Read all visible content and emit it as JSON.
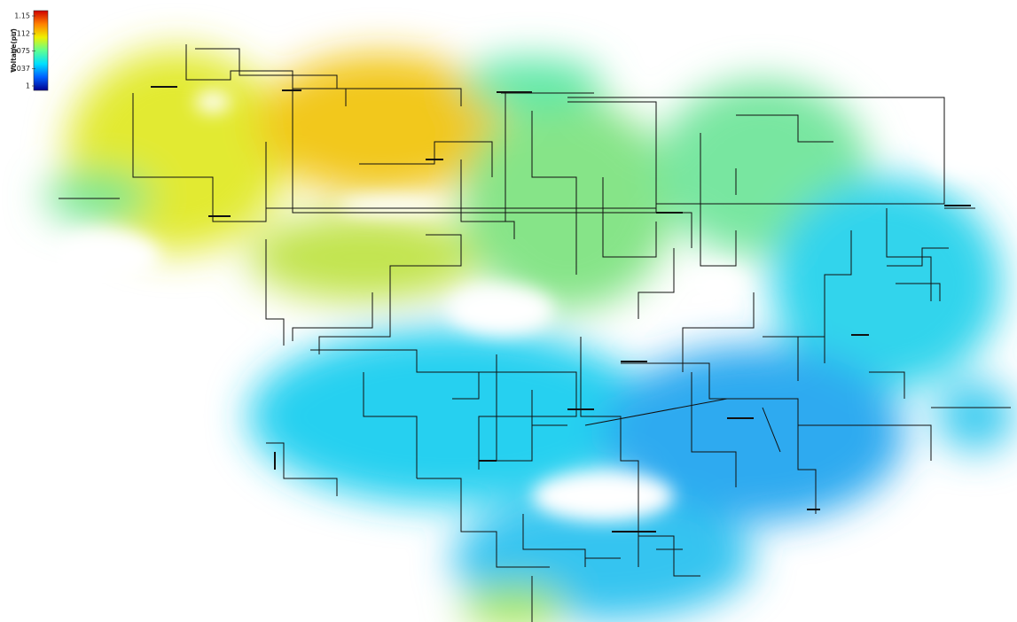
{
  "colorbar": {
    "label": "Voltage(pu)",
    "lim": [
      1,
      1.15
    ],
    "ticks": [
      1,
      1.037,
      1.075,
      1.112,
      1.15
    ],
    "colors": [
      "#00008f",
      "#0060ff",
      "#00e0ff",
      "#60ff90",
      "#f0f000",
      "#ff8000",
      "#d00000"
    ]
  }
}
